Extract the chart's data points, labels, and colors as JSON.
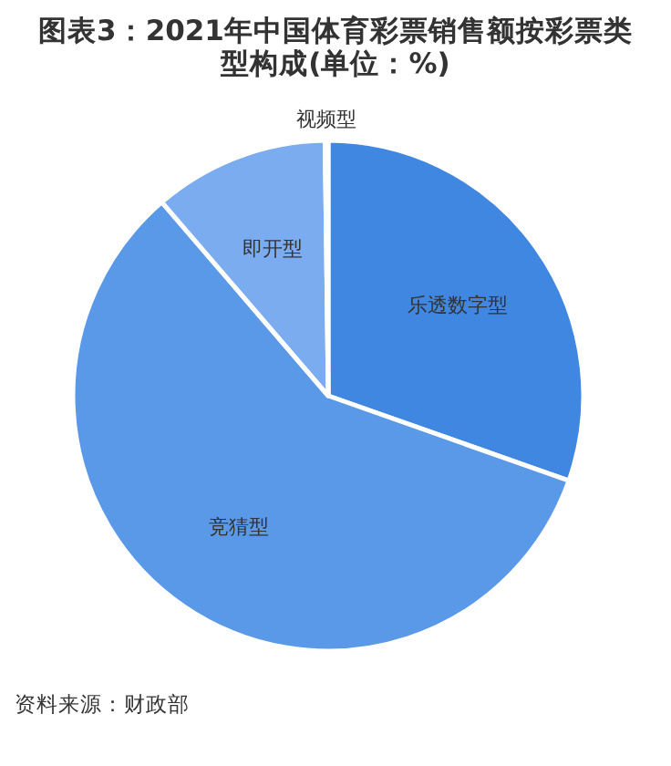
{
  "chart_data": {
    "type": "pie",
    "title": "图表3：2021年中国体育彩票销售额按彩票类型构成(单位：%)",
    "categories": [
      "乐透数字型",
      "竞猜型",
      "即开型",
      "视频型"
    ],
    "values": [
      30.4,
      58.3,
      11.1,
      0.2
    ],
    "colors": [
      "#3f87e0",
      "#5a98e8",
      "#7aacef",
      "#a9c9f5"
    ],
    "annotations": [
      "资料来源：财政部"
    ]
  }
}
